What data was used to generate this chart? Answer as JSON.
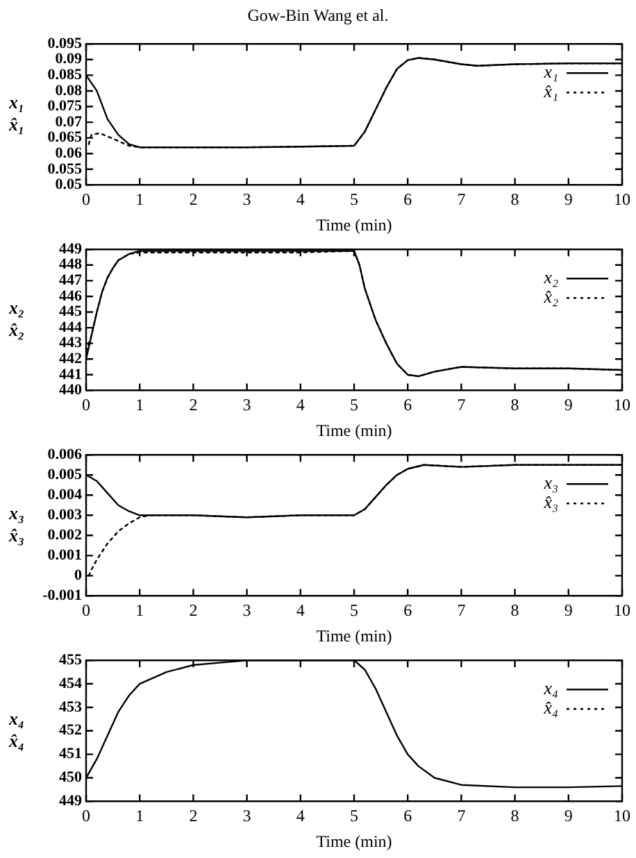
{
  "chart_data": [
    {
      "type": "line",
      "annotations": [
        "Gow-Bin Wang et al."
      ],
      "xlabel": "Time (min)",
      "ylabel": "x₁\nx̂₁",
      "xlim": [
        0,
        10
      ],
      "xticks": [
        0,
        1,
        2,
        3,
        4,
        5,
        6,
        7,
        8,
        9,
        10
      ],
      "ylim": [
        0.05,
        0.095
      ],
      "yticks": [
        0.05,
        0.055,
        0.06,
        0.065,
        0.07,
        0.075,
        0.08,
        0.085,
        0.09,
        0.095
      ],
      "grid": false,
      "legend": "top right",
      "series": [
        {
          "name": "x₁",
          "color": "#000000",
          "line_style": "solid",
          "x": [
            0,
            0.2,
            0.4,
            0.6,
            0.8,
            1,
            2,
            3,
            4,
            5,
            5.2,
            5.4,
            5.6,
            5.8,
            6,
            6.2,
            6.5,
            7,
            7.3,
            8,
            9,
            10
          ],
          "values": [
            0.085,
            0.08,
            0.071,
            0.066,
            0.063,
            0.062,
            0.062,
            0.062,
            0.0622,
            0.0625,
            0.067,
            0.074,
            0.081,
            0.087,
            0.0898,
            0.0905,
            0.09,
            0.0885,
            0.088,
            0.0885,
            0.0888,
            0.0888
          ]
        },
        {
          "name": "x̂₁",
          "color": "#000000",
          "line_style": "dotted",
          "x": [
            0.05,
            0.1,
            0.25,
            0.4,
            0.6,
            0.8,
            1,
            2,
            3,
            4,
            5,
            5.2,
            5.4,
            5.6,
            5.8,
            6,
            6.2,
            6.5,
            7,
            7.3,
            8,
            9,
            10
          ],
          "values": [
            0.063,
            0.066,
            0.0665,
            0.0655,
            0.064,
            0.0625,
            0.062,
            0.062,
            0.062,
            0.0622,
            0.0625,
            0.067,
            0.074,
            0.081,
            0.087,
            0.0898,
            0.0905,
            0.09,
            0.0885,
            0.088,
            0.0885,
            0.0888,
            0.0888
          ]
        }
      ]
    },
    {
      "type": "line",
      "xlabel": "Time (min)",
      "ylabel": "x₂\nx̂₂",
      "xlim": [
        0,
        10
      ],
      "xticks": [
        0,
        1,
        2,
        3,
        4,
        5,
        6,
        7,
        8,
        9,
        10
      ],
      "ylim": [
        440,
        449
      ],
      "yticks": [
        440,
        441,
        442,
        443,
        444,
        445,
        446,
        447,
        448,
        449
      ],
      "grid": false,
      "legend": "top right",
      "series": [
        {
          "name": "x₂",
          "color": "#000000",
          "line_style": "solid",
          "x": [
            0,
            0.1,
            0.2,
            0.3,
            0.4,
            0.5,
            0.6,
            0.8,
            1,
            2,
            3,
            4,
            5,
            5.1,
            5.2,
            5.4,
            5.6,
            5.8,
            6,
            6.2,
            6.5,
            7,
            8,
            9,
            10
          ],
          "values": [
            442,
            443.5,
            445,
            446.3,
            447.2,
            447.8,
            448.3,
            448.7,
            448.9,
            448.9,
            448.9,
            448.9,
            448.9,
            448,
            446.5,
            444.5,
            443,
            441.7,
            441,
            440.9,
            441.2,
            441.5,
            441.4,
            441.4,
            441.3
          ]
        },
        {
          "name": "x̂₂",
          "color": "#000000",
          "line_style": "dotted",
          "x": [
            0,
            0.1,
            0.2,
            0.3,
            0.4,
            0.5,
            0.6,
            0.8,
            1,
            2,
            3,
            4,
            5,
            5.1,
            5.2,
            5.4,
            5.6,
            5.8,
            6,
            6.2,
            6.5,
            7,
            8,
            9,
            10
          ],
          "values": [
            442.5,
            443.5,
            445,
            446.3,
            447.2,
            447.8,
            448.3,
            448.7,
            448.8,
            448.8,
            448.8,
            448.8,
            448.9,
            448,
            446.5,
            444.5,
            443,
            441.7,
            441,
            440.9,
            441.2,
            441.5,
            441.4,
            441.4,
            441.3
          ]
        }
      ]
    },
    {
      "type": "line",
      "xlabel": "Time (min)",
      "ylabel": "x₃\nx̂₃",
      "xlim": [
        0,
        10
      ],
      "xticks": [
        0,
        1,
        2,
        3,
        4,
        5,
        6,
        7,
        8,
        9,
        10
      ],
      "ylim": [
        -0.001,
        0.006
      ],
      "yticks": [
        -0.001,
        0,
        0.001,
        0.002,
        0.003,
        0.004,
        0.005,
        0.006
      ],
      "grid": false,
      "legend": "top right",
      "series": [
        {
          "name": "x₃",
          "color": "#000000",
          "line_style": "solid",
          "x": [
            0,
            0.2,
            0.4,
            0.6,
            0.8,
            1,
            1.5,
            2,
            3,
            4,
            5,
            5.2,
            5.4,
            5.6,
            5.8,
            6,
            6.3,
            7,
            8,
            9,
            10
          ],
          "values": [
            0.005,
            0.0047,
            0.0041,
            0.0035,
            0.0032,
            0.003,
            0.003,
            0.003,
            0.0029,
            0.003,
            0.003,
            0.0033,
            0.0039,
            0.0045,
            0.005,
            0.0053,
            0.0055,
            0.0054,
            0.0055,
            0.0055,
            0.0055
          ]
        },
        {
          "name": "x̂₃",
          "color": "#000000",
          "line_style": "dotted",
          "x": [
            0.05,
            0.1,
            0.2,
            0.4,
            0.6,
            0.8,
            1,
            1.2,
            1.5,
            2,
            3,
            4,
            5,
            5.2,
            5.4,
            5.6,
            5.8,
            6,
            6.3,
            7,
            8,
            9,
            10
          ],
          "values": [
            0,
            0.0003,
            0.0008,
            0.0016,
            0.0022,
            0.0026,
            0.0029,
            0.003,
            0.003,
            0.003,
            0.0029,
            0.003,
            0.003,
            0.0033,
            0.0039,
            0.0045,
            0.005,
            0.0053,
            0.0055,
            0.0054,
            0.0055,
            0.0055,
            0.0055
          ]
        }
      ]
    },
    {
      "type": "line",
      "xlabel": "Time (min)",
      "ylabel": "x₄\nx̂₄",
      "xlim": [
        0,
        10
      ],
      "xticks": [
        0,
        1,
        2,
        3,
        4,
        5,
        6,
        7,
        8,
        9,
        10
      ],
      "ylim": [
        449,
        455
      ],
      "yticks": [
        449,
        450,
        451,
        452,
        453,
        454,
        455
      ],
      "grid": false,
      "legend": "top right",
      "series": [
        {
          "name": "x₄",
          "color": "#000000",
          "line_style": "solid",
          "x": [
            0,
            0.2,
            0.4,
            0.6,
            0.8,
            1,
            1.5,
            2,
            2.5,
            3,
            5,
            5.2,
            5.4,
            5.6,
            5.8,
            6,
            6.2,
            6.5,
            7,
            8,
            9,
            10
          ],
          "values": [
            450,
            450.8,
            451.8,
            452.8,
            453.5,
            454,
            454.5,
            454.8,
            454.9,
            455,
            455,
            454.6,
            453.8,
            452.8,
            451.8,
            451,
            450.5,
            450,
            449.7,
            449.6,
            449.6,
            449.65
          ]
        },
        {
          "name": "x̂₄",
          "color": "#000000",
          "line_style": "dotted"
        }
      ]
    }
  ]
}
